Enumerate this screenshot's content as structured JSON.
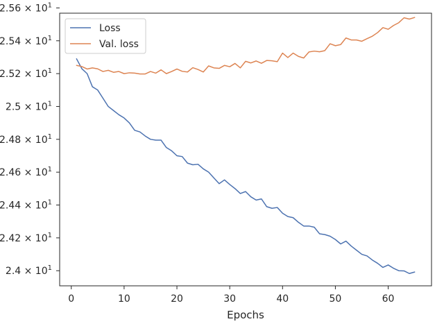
{
  "chart_data": {
    "type": "line",
    "title": "",
    "xlabel": "Epochs",
    "ylabel": "",
    "xlim": [
      -2.2,
      68.2
    ],
    "ylim": [
      23.908,
      25.568
    ],
    "grid": false,
    "legend_position": "top-left",
    "x_ticks": [
      {
        "value": 0,
        "label": "0"
      },
      {
        "value": 10,
        "label": "10"
      },
      {
        "value": 20,
        "label": "20"
      },
      {
        "value": 30,
        "label": "30"
      },
      {
        "value": 40,
        "label": "40"
      },
      {
        "value": 50,
        "label": "50"
      },
      {
        "value": 60,
        "label": "60"
      }
    ],
    "y_ticks": [
      {
        "value": 24.0,
        "mantissa": "2.4",
        "exponent": "1"
      },
      {
        "value": 24.2,
        "mantissa": "2.42",
        "exponent": "1"
      },
      {
        "value": 24.4,
        "mantissa": "2.44",
        "exponent": "1"
      },
      {
        "value": 24.6,
        "mantissa": "2.46",
        "exponent": "1"
      },
      {
        "value": 24.8,
        "mantissa": "2.48",
        "exponent": "1"
      },
      {
        "value": 25.0,
        "mantissa": "2.5",
        "exponent": "1"
      },
      {
        "value": 25.2,
        "mantissa": "2.52",
        "exponent": "1"
      },
      {
        "value": 25.4,
        "mantissa": "2.54",
        "exponent": "1"
      },
      {
        "value": 25.6,
        "mantissa": "2.56",
        "exponent": "1"
      }
    ],
    "x": [
      1,
      2,
      3,
      4,
      5,
      6,
      7,
      8,
      9,
      10,
      11,
      12,
      13,
      14,
      15,
      16,
      17,
      18,
      19,
      20,
      21,
      22,
      23,
      24,
      25,
      26,
      27,
      28,
      29,
      30,
      31,
      32,
      33,
      34,
      35,
      36,
      37,
      38,
      39,
      40,
      41,
      42,
      43,
      44,
      45,
      46,
      47,
      48,
      49,
      50,
      51,
      52,
      53,
      54,
      55,
      56,
      57,
      58,
      59,
      60,
      61,
      62,
      63,
      64,
      65
    ],
    "series": [
      {
        "name": "Loss",
        "color": "#4c72b0",
        "values": [
          25.29,
          25.23,
          25.2,
          25.12,
          25.1,
          25.05,
          25.0,
          24.975,
          24.95,
          24.93,
          24.9,
          24.855,
          24.845,
          24.82,
          24.8,
          24.795,
          24.795,
          24.75,
          24.73,
          24.7,
          24.695,
          24.655,
          24.645,
          24.648,
          24.62,
          24.6,
          24.565,
          24.53,
          24.553,
          24.525,
          24.5,
          24.47,
          24.482,
          24.45,
          24.43,
          24.437,
          24.39,
          24.38,
          24.385,
          24.35,
          24.33,
          24.323,
          24.295,
          24.272,
          24.272,
          24.265,
          24.225,
          24.22,
          24.21,
          24.19,
          24.163,
          24.18,
          24.15,
          24.125,
          24.1,
          24.09,
          24.065,
          24.045,
          24.02,
          24.035,
          24.015,
          24.0,
          23.999,
          23.983,
          23.992
        ]
      },
      {
        "name": "Val. loss",
        "color": "#dd8452",
        "values": [
          25.25,
          25.243,
          25.228,
          25.235,
          25.229,
          25.213,
          25.22,
          25.208,
          25.213,
          25.2,
          25.205,
          25.203,
          25.198,
          25.198,
          25.213,
          25.203,
          25.223,
          25.2,
          25.213,
          25.228,
          25.214,
          25.21,
          25.236,
          25.225,
          25.21,
          25.247,
          25.235,
          25.232,
          25.25,
          25.242,
          25.262,
          25.235,
          25.275,
          25.265,
          25.277,
          25.263,
          25.28,
          25.278,
          25.273,
          25.325,
          25.298,
          25.325,
          25.305,
          25.295,
          25.332,
          25.337,
          25.333,
          25.34,
          25.382,
          25.37,
          25.377,
          25.417,
          25.405,
          25.405,
          25.397,
          25.413,
          25.428,
          25.45,
          25.48,
          25.47,
          25.493,
          25.51,
          25.54,
          25.532,
          25.542
        ]
      }
    ]
  }
}
